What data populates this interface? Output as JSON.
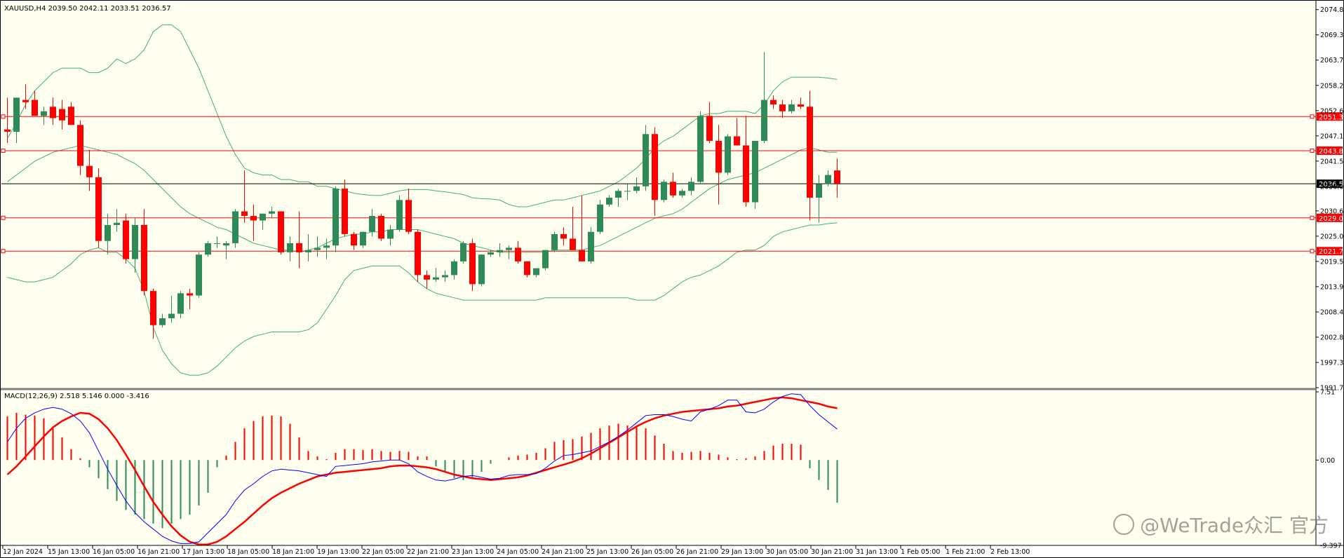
{
  "symbol_info": "XAUUSD,H4  2039.50 2042.11 2033.51 2036.57",
  "macd_info": "MACD(12,26,9) 2.518 5.146 0.000 -3.416",
  "watermark": "@WeTrade众汇 官方",
  "colors": {
    "background": "#fffff0",
    "bull": "#2e8b57",
    "bear": "#ff0000",
    "bands": "#3cb371",
    "macd_signal_line": "#ff0000",
    "macd_main_line": "#0000ff",
    "hline": "#ff0000",
    "current_price_line": "#000000"
  },
  "price_axis": {
    "ticks": [
      "2074.85",
      "2069.30",
      "2063.75",
      "2058.20",
      "2052.65",
      "2047.10",
      "2041.55",
      "2036.00",
      "2030.60",
      "2025.05",
      "2019.50",
      "2013.95",
      "2008.40",
      "2002.85",
      "1997.30",
      "1991.75"
    ],
    "hlines": [
      {
        "value": 2051.34,
        "label": "2051.34"
      },
      {
        "value": 2043.84,
        "label": "2043.84"
      },
      {
        "value": 2029.07,
        "label": "2029.07"
      },
      {
        "value": 2021.76,
        "label": "2021.76"
      }
    ],
    "current": {
      "value": 2036.57,
      "label": "2036.57"
    }
  },
  "macd_axis": {
    "ticks": [
      "7.51",
      "0.00",
      "-9.397"
    ]
  },
  "time_axis": {
    "labels": [
      "12 Jan 2024",
      "15 Jan 13:00",
      "16 Jan 05:00",
      "16 Jan 21:00",
      "17 Jan 13:00",
      "18 Jan 05:00",
      "18 Jan 21:00",
      "19 Jan 13:00",
      "22 Jan 05:00",
      "22 Jan 21:00",
      "23 Jan 13:00",
      "24 Jan 05:00",
      "24 Jan 21:00",
      "25 Jan 13:00",
      "26 Jan 05:00",
      "26 Jan 21:00",
      "29 Jan 13:00",
      "30 Jan 05:00",
      "30 Jan 21:00",
      "31 Jan 13:00",
      "1 Feb 05:00",
      "1 Feb 21:00",
      "2 Feb 13:00"
    ]
  },
  "chart_data": {
    "type": "candlestick",
    "title": "XAUUSD,H4",
    "ylim": [
      1991.75,
      2076.5
    ],
    "candles": [
      [
        2048.5,
        2055.5,
        2045.5,
        2048.0
      ],
      [
        2048.0,
        2055.5,
        2045.5,
        2055.5
      ],
      [
        2055.0,
        2058.5,
        2053.0,
        2054.5
      ],
      [
        2055.0,
        2057.0,
        2051.5,
        2051.5
      ],
      [
        2051.5,
        2053.5,
        2049.5,
        2052.5
      ],
      [
        2053.5,
        2055.5,
        2049.5,
        2051.0
      ],
      [
        2053.0,
        2055.0,
        2048.5,
        2050.5
      ],
      [
        2053.5,
        2054.5,
        2049.5,
        2049.5
      ],
      [
        2049.5,
        2050.5,
        2038.5,
        2040.5
      ],
      [
        2040.5,
        2044.0,
        2035.0,
        2038.0
      ],
      [
        2038.0,
        2040.0,
        2022.5,
        2024.0
      ],
      [
        2024.0,
        2030.0,
        2021.0,
        2027.5
      ],
      [
        2027.5,
        2031.0,
        2026.0,
        2028.0
      ],
      [
        2028.5,
        2030.0,
        2019.0,
        2020.0
      ],
      [
        2020.0,
        2029.0,
        2017.0,
        2027.5
      ],
      [
        2027.5,
        2031.0,
        2012.0,
        2013.0
      ],
      [
        2013.0,
        2013.5,
        2002.5,
        2005.5
      ],
      [
        2005.5,
        2008.0,
        2005.0,
        2007.0
      ],
      [
        2007.0,
        2012.0,
        2006.0,
        2008.0
      ],
      [
        2008.0,
        2013.0,
        2007.0,
        2012.5
      ],
      [
        2012.5,
        2013.5,
        2009.0,
        2012.0
      ],
      [
        2012.0,
        2021.5,
        2011.5,
        2021.0
      ],
      [
        2021.0,
        2024.0,
        2020.5,
        2023.5
      ],
      [
        2023.5,
        2025.0,
        2022.5,
        2023.5
      ],
      [
        2023.0,
        2024.0,
        2020.0,
        2023.5
      ],
      [
        2023.5,
        2031.0,
        2022.5,
        2030.5
      ],
      [
        2030.5,
        2039.5,
        2028.0,
        2029.5
      ],
      [
        2029.5,
        2032.0,
        2024.0,
        2028.5
      ],
      [
        2028.5,
        2030.0,
        2026.5,
        2030.0
      ],
      [
        2030.0,
        2031.5,
        2029.0,
        2030.5
      ],
      [
        2030.5,
        2030.5,
        2021.0,
        2021.5
      ],
      [
        2021.5,
        2025.0,
        2019.5,
        2023.5
      ],
      [
        2023.5,
        2030.5,
        2018.0,
        2021.5
      ],
      [
        2021.5,
        2025.5,
        2019.5,
        2022.0
      ],
      [
        2022.0,
        2025.0,
        2020.5,
        2022.5
      ],
      [
        2022.5,
        2024.5,
        2020.0,
        2023.0
      ],
      [
        2023.0,
        2036.0,
        2021.5,
        2035.5
      ],
      [
        2035.5,
        2037.5,
        2025.0,
        2025.5
      ],
      [
        2025.5,
        2026.0,
        2022.0,
        2023.0
      ],
      [
        2023.0,
        2026.0,
        2022.5,
        2026.0
      ],
      [
        2026.0,
        2031.0,
        2025.0,
        2029.5
      ],
      [
        2029.5,
        2030.0,
        2024.0,
        2024.5
      ],
      [
        2024.5,
        2027.5,
        2023.0,
        2026.5
      ],
      [
        2026.5,
        2034.0,
        2026.0,
        2033.0
      ],
      [
        2033.0,
        2035.5,
        2025.5,
        2026.0
      ],
      [
        2026.0,
        2026.5,
        2015.0,
        2016.5
      ],
      [
        2016.5,
        2017.5,
        2013.5,
        2015.5
      ],
      [
        2015.5,
        2018.0,
        2015.0,
        2016.0
      ],
      [
        2016.0,
        2017.5,
        2015.0,
        2016.5
      ],
      [
        2016.5,
        2020.0,
        2015.5,
        2019.5
      ],
      [
        2019.5,
        2024.0,
        2019.0,
        2023.5
      ],
      [
        2023.5,
        2024.5,
        2013.0,
        2014.5
      ],
      [
        2014.5,
        2021.0,
        2014.0,
        2021.0
      ],
      [
        2021.0,
        2022.0,
        2020.5,
        2021.5
      ],
      [
        2021.5,
        2023.5,
        2020.5,
        2022.0
      ],
      [
        2022.0,
        2023.0,
        2020.0,
        2022.5
      ],
      [
        2022.5,
        2024.0,
        2019.0,
        2019.5
      ],
      [
        2019.5,
        2019.5,
        2016.0,
        2016.5
      ],
      [
        2016.5,
        2018.0,
        2016.0,
        2018.0
      ],
      [
        2018.0,
        2022.0,
        2017.5,
        2022.0
      ],
      [
        2022.0,
        2026.0,
        2021.5,
        2025.5
      ],
      [
        2025.5,
        2027.0,
        2023.0,
        2024.5
      ],
      [
        2024.5,
        2031.5,
        2022.0,
        2022.0
      ],
      [
        2022.0,
        2034.0,
        2019.5,
        2019.5
      ],
      [
        2019.5,
        2027.0,
        2019.0,
        2026.0
      ],
      [
        2026.0,
        2033.0,
        2025.5,
        2032.0
      ],
      [
        2032.0,
        2034.0,
        2031.5,
        2033.5
      ],
      [
        2033.5,
        2035.5,
        2031.5,
        2035.0
      ],
      [
        2035.0,
        2036.5,
        2033.0,
        2035.0
      ],
      [
        2035.0,
        2038.0,
        2034.5,
        2036.0
      ],
      [
        2036.0,
        2049.5,
        2035.0,
        2047.5
      ],
      [
        2047.5,
        2049.0,
        2029.5,
        2033.0
      ],
      [
        2033.0,
        2037.5,
        2032.5,
        2037.0
      ],
      [
        2037.0,
        2039.0,
        2033.5,
        2034.0
      ],
      [
        2034.0,
        2035.5,
        2033.5,
        2035.0
      ],
      [
        2035.0,
        2038.0,
        2034.0,
        2037.0
      ],
      [
        2037.0,
        2052.5,
        2036.5,
        2051.5
      ],
      [
        2051.5,
        2054.5,
        2045.5,
        2046.0
      ],
      [
        2046.0,
        2049.5,
        2032.0,
        2039.0
      ],
      [
        2039.0,
        2047.5,
        2038.5,
        2047.0
      ],
      [
        2047.0,
        2051.0,
        2045.0,
        2045.0
      ],
      [
        2045.0,
        2051.5,
        2031.5,
        2032.5
      ],
      [
        2032.5,
        2046.0,
        2031.0,
        2046.0
      ],
      [
        2046.0,
        2065.5,
        2045.5,
        2055.0
      ],
      [
        2055.0,
        2056.0,
        2053.0,
        2054.0
      ],
      [
        2054.0,
        2055.0,
        2051.0,
        2052.5
      ],
      [
        2052.5,
        2055.0,
        2052.0,
        2054.0
      ],
      [
        2054.0,
        2055.5,
        2053.0,
        2053.5
      ],
      [
        2053.5,
        2057.0,
        2028.5,
        2033.5
      ],
      [
        2033.5,
        2038.5,
        2028.0,
        2036.5
      ],
      [
        2036.5,
        2039.5,
        2036.0,
        2038.5
      ],
      [
        2039.5,
        2042.1,
        2033.5,
        2036.6
      ]
    ],
    "bollinger": {
      "upper": [
        2046.5,
        2050,
        2054,
        2057,
        2059,
        2061,
        2062,
        2062,
        2062,
        2061,
        2061,
        2062,
        2064,
        2063,
        2064,
        2066,
        2070,
        2071.5,
        2071.5,
        2070,
        2066,
        2062,
        2057,
        2052,
        2047,
        2043,
        2040,
        2039,
        2038.5,
        2038.5,
        2037.5,
        2037.5,
        2037,
        2037,
        2036,
        2036,
        2035.5,
        2035,
        2034.5,
        2034.2,
        2034,
        2034,
        2034.5,
        2035,
        2035.3,
        2035.3,
        2035.3,
        2035,
        2034.8,
        2034.5,
        2034.2,
        2033.5,
        2033.3,
        2033.2,
        2033,
        2032,
        2031.5,
        2031.5,
        2032,
        2032.5,
        2033,
        2033,
        2033.5,
        2034,
        2034.5,
        2035,
        2036,
        2037,
        2038.5,
        2040,
        2042,
        2044.5,
        2046,
        2047,
        2048.5,
        2050,
        2051.5,
        2052,
        2052,
        2052.5,
        2052.5,
        2052.5,
        2052,
        2054,
        2057,
        2059,
        2060,
        2060,
        2060,
        2060,
        2059.8,
        2059.5
      ],
      "mid": [
        2037,
        2038.5,
        2040,
        2041.5,
        2042.5,
        2043.5,
        2044,
        2044.5,
        2045,
        2044.5,
        2044,
        2043.5,
        2043,
        2042,
        2041,
        2039.5,
        2037.5,
        2035.5,
        2033.5,
        2031.5,
        2030,
        2029,
        2028,
        2027,
        2026.5,
        2025.5,
        2024.5,
        2023.5,
        2023,
        2022.5,
        2022,
        2022,
        2021.5,
        2022,
        2022.5,
        2023.5,
        2024.5,
        2025,
        2025.5,
        2025.5,
        2026,
        2026,
        2026.5,
        2026.5,
        2026.5,
        2026.5,
        2026,
        2025.5,
        2025,
        2024.5,
        2023.5,
        2023,
        2022.5,
        2022,
        2021.5,
        2021.5,
        2021.5,
        2021.5,
        2021.5,
        2021.5,
        2022,
        2022,
        2022,
        2022,
        2022.5,
        2023,
        2024,
        2025,
        2026,
        2027,
        2028,
        2029,
        2029.5,
        2030,
        2031,
        2032.5,
        2034,
        2035.5,
        2036.5,
        2037.5,
        2038,
        2038.5,
        2039,
        2040,
        2041,
        2042,
        2043,
        2044,
        2044.5,
        2044,
        2043.5,
        2043.5
      ],
      "lower": [
        2016,
        2015.5,
        2015,
        2015,
        2015.5,
        2016,
        2017.5,
        2019,
        2021,
        2022,
        2022.5,
        2021.5,
        2021.5,
        2020,
        2018,
        2013,
        2005,
        2000,
        1997,
        1995,
        1994.5,
        1994.5,
        1995,
        1996.5,
        1998.5,
        2000.5,
        2002,
        2003,
        2003.5,
        2004,
        2004,
        2004,
        2004,
        2004.5,
        2006,
        2009,
        2012,
        2015.5,
        2017.5,
        2018,
        2018.5,
        2018.5,
        2018.5,
        2018.5,
        2017,
        2015,
        2013.5,
        2012.5,
        2012,
        2011.5,
        2011,
        2011,
        2011,
        2011,
        2011,
        2011,
        2011,
        2011,
        2011,
        2011.5,
        2011.5,
        2011.5,
        2011.5,
        2011.5,
        2011.5,
        2011.5,
        2011.5,
        2011.5,
        2011.5,
        2011,
        2011,
        2011,
        2012,
        2013.5,
        2015,
        2016,
        2016.5,
        2017.5,
        2018.5,
        2020,
        2021.5,
        2022,
        2022,
        2023,
        2025,
        2026,
        2026.5,
        2027,
        2027.5,
        2027.5,
        2027.8,
        2028
      ]
    },
    "macd": {
      "ylim": [
        -9.397,
        7.51
      ],
      "histogram": [
        4.8,
        5.2,
        5.0,
        4.9,
        4.6,
        3.5,
        2.5,
        1.2,
        0.2,
        -0.8,
        -2.0,
        -3.2,
        -4.5,
        -5.5,
        -6.0,
        -6.5,
        -7.0,
        -7.5,
        -7.0,
        -6.5,
        -6.0,
        -5.0,
        -3.6,
        -0.8,
        0.5,
        2.0,
        3.5,
        4.3,
        4.8,
        4.9,
        4.8,
        4.0,
        2.5,
        1.0,
        0.4,
        0.1,
        0.8,
        1.2,
        1.2,
        1.1,
        1.2,
        1.0,
        0.9,
        1.0,
        0.9,
        0.4,
        0.4,
        -0.7,
        -1.3,
        -2.0,
        -2.2,
        -2.0,
        -1.3,
        -0.4,
        0.0,
        0.3,
        0.5,
        0.6,
        0.8,
        1.3,
        2.0,
        2.2,
        2.3,
        2.6,
        3.0,
        3.5,
        3.8,
        4.0,
        3.8,
        3.6,
        3.5,
        2.7,
        1.8,
        1.0,
        0.8,
        0.9,
        1.0,
        0.8,
        0.6,
        0.3,
        0.1,
        0.2,
        0.4,
        1.0,
        1.6,
        1.8,
        1.8,
        1.7,
        -0.9,
        -2.2,
        -3.3,
        -4.7
      ],
      "main": [
        2.0,
        3.5,
        4.6,
        5.2,
        5.6,
        5.8,
        5.6,
        5.1,
        4.3,
        3.0,
        1.0,
        -1.0,
        -2.8,
        -4.5,
        -5.8,
        -6.8,
        -7.6,
        -8.4,
        -8.9,
        -9.2,
        -9.2,
        -9.0,
        -8.0,
        -7.0,
        -6.0,
        -4.5,
        -3.3,
        -2.6,
        -1.8,
        -1.2,
        -1.0,
        -1.1,
        -1.2,
        -1.4,
        -1.6,
        -1.8,
        -0.7,
        -0.6,
        -0.5,
        -0.4,
        -0.2,
        -0.1,
        0.0,
        0.0,
        -0.4,
        -1.3,
        -1.8,
        -2.2,
        -2.3,
        -2.1,
        -1.8,
        -1.7,
        -1.9,
        -2.1,
        -2.0,
        -1.7,
        -1.6,
        -1.6,
        -1.5,
        -0.9,
        -0.1,
        0.5,
        0.6,
        0.8,
        1.0,
        1.5,
        2.0,
        2.6,
        3.3,
        4.1,
        4.9,
        5.0,
        5.0,
        4.8,
        4.5,
        4.3,
        5.3,
        5.6,
        6.0,
        6.6,
        6.6,
        5.3,
        5.2,
        5.6,
        6.4,
        7.0,
        7.3,
        7.2,
        6.0,
        5.0,
        4.2,
        3.4
      ],
      "signal": [
        -1.6,
        -0.7,
        0.4,
        1.5,
        2.6,
        3.6,
        4.3,
        4.8,
        5.2,
        5.1,
        4.5,
        3.5,
        2.2,
        0.6,
        -1.1,
        -2.9,
        -4.6,
        -6.0,
        -7.3,
        -8.3,
        -9.0,
        -9.3,
        -9.3,
        -9.0,
        -8.4,
        -7.6,
        -6.8,
        -5.9,
        -5.0,
        -4.2,
        -3.6,
        -3.1,
        -2.6,
        -2.2,
        -1.8,
        -1.6,
        -1.4,
        -1.3,
        -1.2,
        -1.1,
        -1.0,
        -0.9,
        -0.7,
        -0.6,
        -0.6,
        -0.7,
        -0.8,
        -1.0,
        -1.3,
        -1.6,
        -1.8,
        -2.0,
        -2.1,
        -2.2,
        -2.1,
        -2.0,
        -1.9,
        -1.7,
        -1.4,
        -1.1,
        -0.8,
        -0.5,
        -0.2,
        0.2,
        0.7,
        1.3,
        1.9,
        2.5,
        3.1,
        3.7,
        4.2,
        4.6,
        4.9,
        5.1,
        5.3,
        5.4,
        5.5,
        5.6,
        5.7,
        5.9,
        6.0,
        6.2,
        6.4,
        6.6,
        6.8,
        6.9,
        6.8,
        6.6,
        6.4,
        6.2,
        5.9,
        5.7
      ]
    }
  }
}
